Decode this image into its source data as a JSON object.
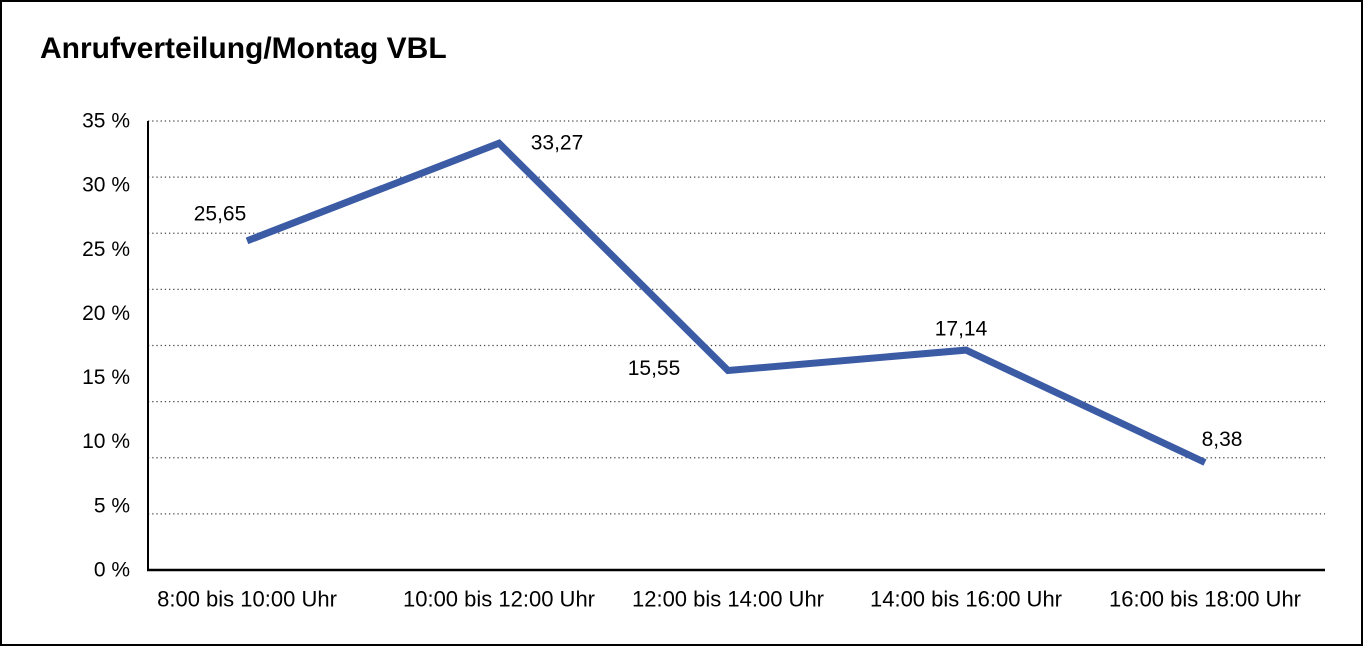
{
  "title": "Anrufverteilung/Montag VBL",
  "colors": {
    "line": "#3B5BA5",
    "grid": "#4a4a4a",
    "axis": "#000000",
    "text": "#000000",
    "background": "#FFFFFF",
    "border": "#000000"
  },
  "chart_data": {
    "type": "line",
    "title": "Anrufverteilung/Montag VBL",
    "categories": [
      "8:00 bis 10:00 Uhr",
      "10:00 bis 12:00 Uhr",
      "12:00 bis 14:00 Uhr",
      "14:00 bis 16:00 Uhr",
      "16:00 bis 18:00 Uhr"
    ],
    "values": [
      25.65,
      33.27,
      15.55,
      17.14,
      8.38
    ],
    "point_labels": [
      "25,65",
      "33,27",
      "15,55",
      "17,14",
      "8,38"
    ],
    "y_tick_labels": [
      "35 %",
      "30 %",
      "25 %",
      "20 %",
      "15 %",
      "10 %",
      "5 %",
      "0 %"
    ],
    "ylim": [
      0,
      35
    ],
    "xlabel": "",
    "ylabel": "",
    "grid": "horizontal-dotted",
    "legend": "none",
    "series_color": "#3B5BA5"
  }
}
